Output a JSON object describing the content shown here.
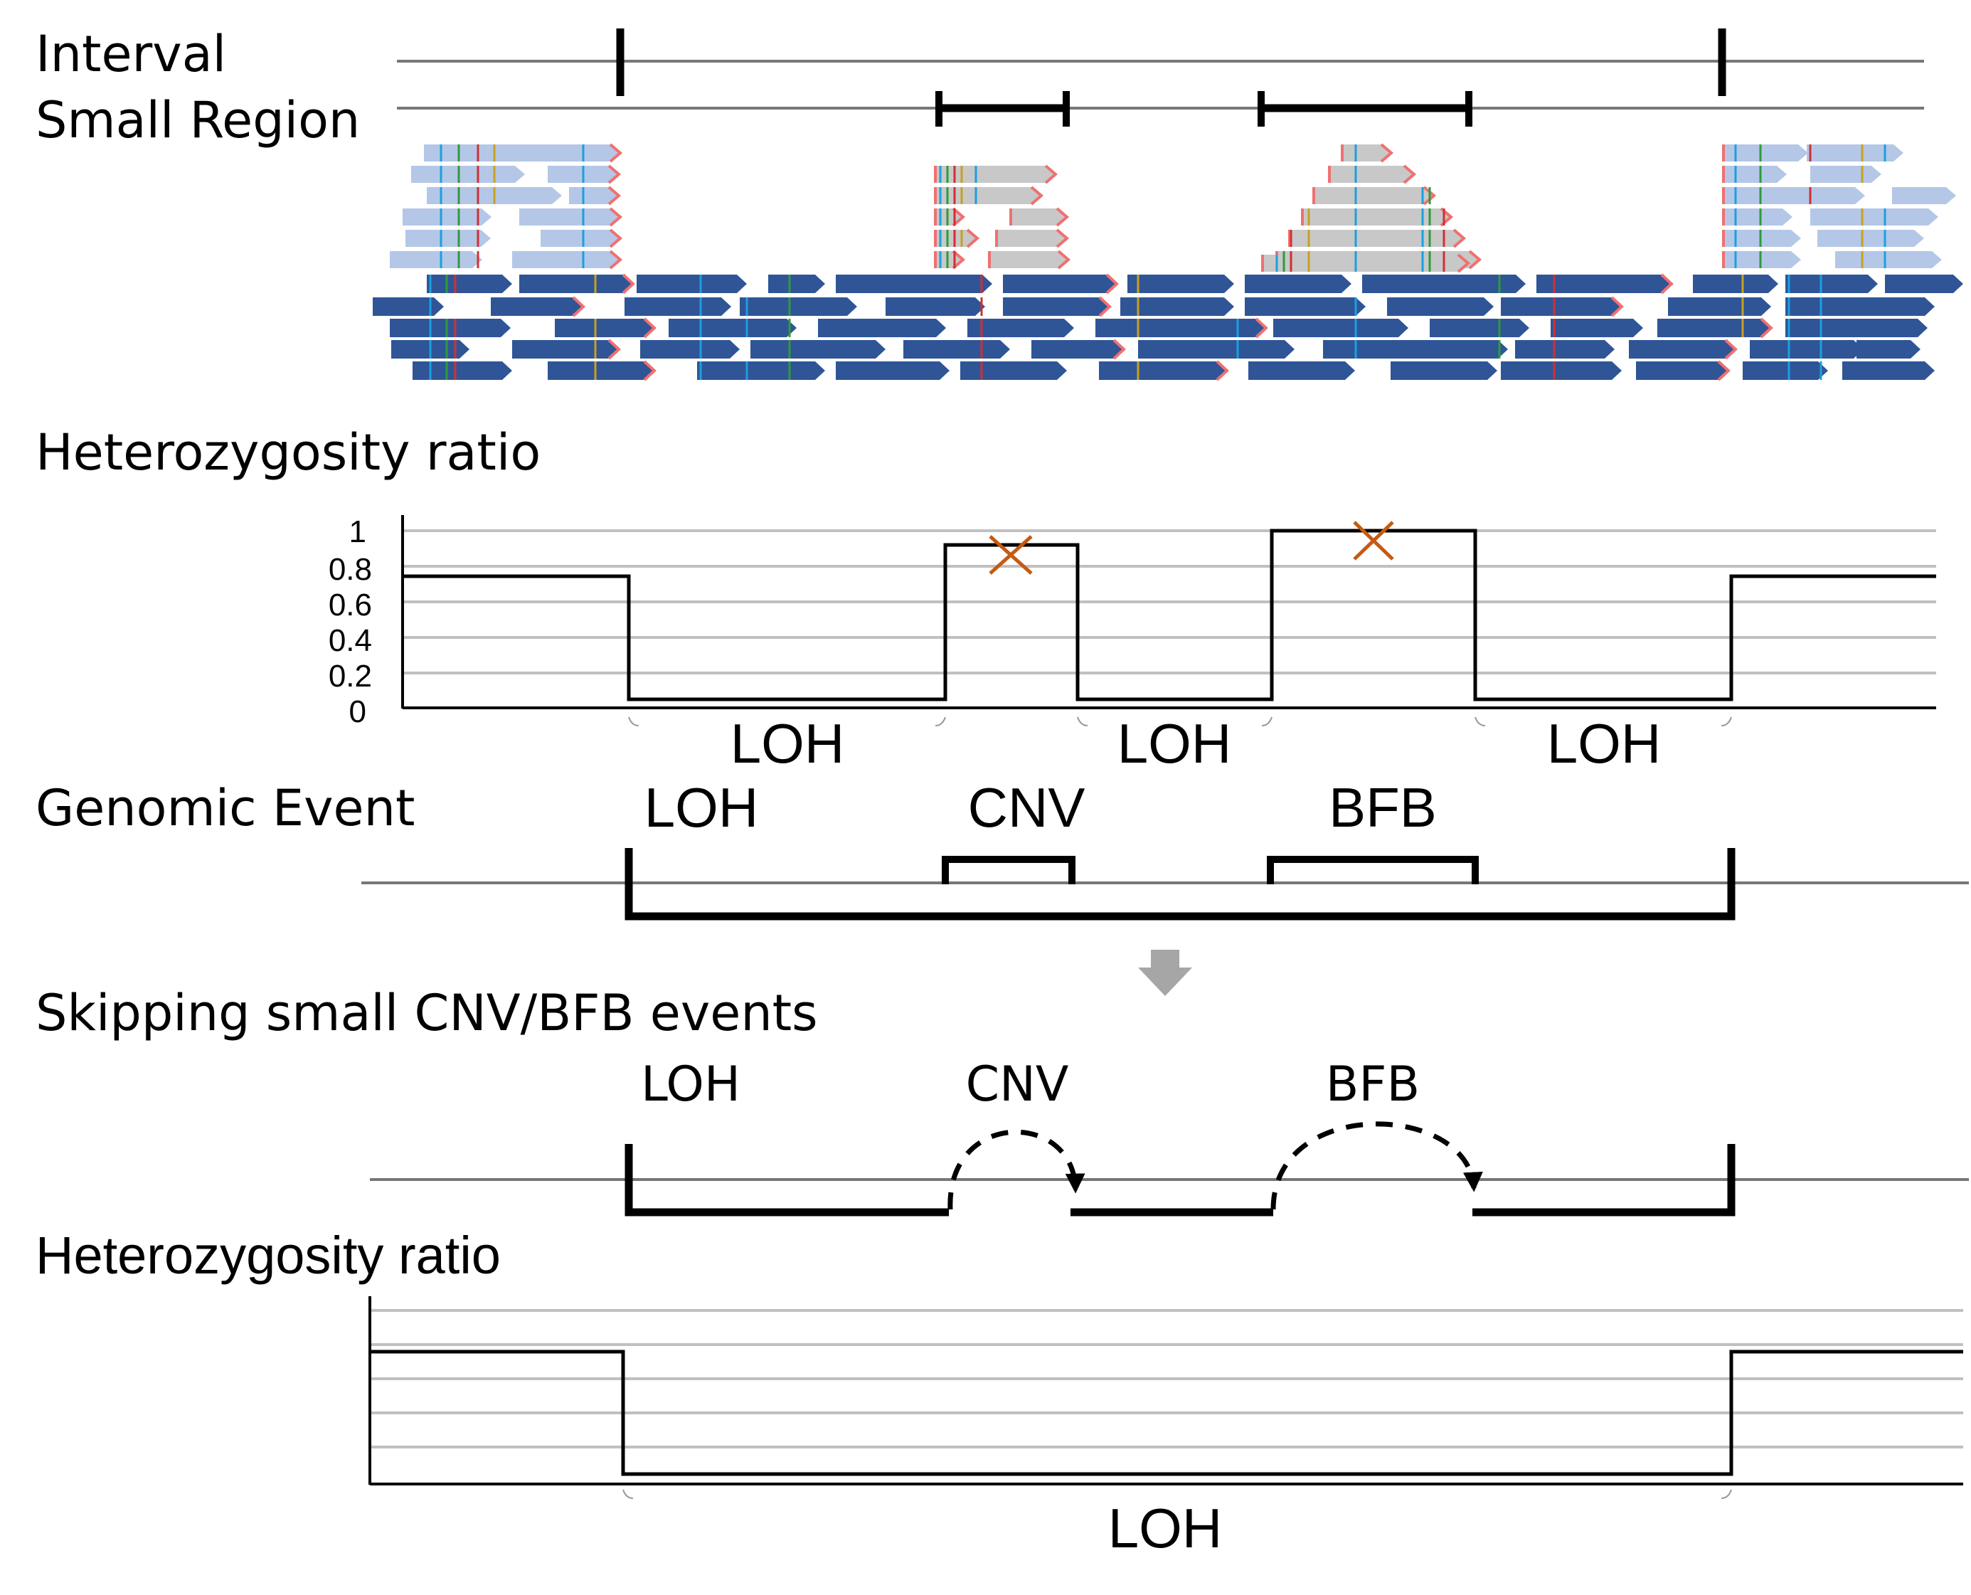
{
  "labels": {
    "interval": "Interval",
    "small_region": "Small Region",
    "heterozygosity_1": "Heterozygosity ratio",
    "genomic_event": "Genomic Event",
    "skipping": "Skipping small CNV/BFB events",
    "heterozygosity_2": "Heterozygosity ratio"
  },
  "chart1": {
    "y_ticks": [
      "1",
      "0.8",
      "0.6",
      "0.4",
      "0.2",
      "0"
    ],
    "segment_labels": [
      "LOH",
      "LOH",
      "LOH"
    ]
  },
  "genomic_event": {
    "labels": [
      "LOH",
      "CNV",
      "BFB"
    ]
  },
  "skipping": {
    "labels": [
      "LOH",
      "CNV",
      "BFB"
    ]
  },
  "chart2": {
    "segment_label": "LOH"
  },
  "colors": {
    "light_read": "#b4c7e7",
    "dark_read": "#2f5597",
    "grey_read": "#c8c8c8",
    "clip": "#f07070",
    "marker": "#c55a11",
    "arrow": "#a6a6a6"
  },
  "chart_data": [
    {
      "type": "line",
      "title": "",
      "ylabel": "",
      "ylim": [
        0,
        1
      ],
      "yticks": [
        0,
        0.2,
        0.4,
        0.6,
        0.8,
        1
      ],
      "series": [
        {
          "values": [
            0.75,
            0.05,
            0.92,
            0.05,
            1.0,
            0.05,
            0.75
          ],
          "step": true
        }
      ],
      "annotations": [
        "LOH",
        "LOH",
        "LOH"
      ],
      "markers": [
        "x at CNV peak",
        "x at BFB peak"
      ],
      "grid": true
    },
    {
      "type": "line",
      "title": "",
      "ylim": [
        0,
        1
      ],
      "series": [
        {
          "values": [
            0.75,
            0.05,
            0.75
          ],
          "step": true
        }
      ],
      "annotations": [
        "LOH"
      ],
      "grid": true
    }
  ]
}
